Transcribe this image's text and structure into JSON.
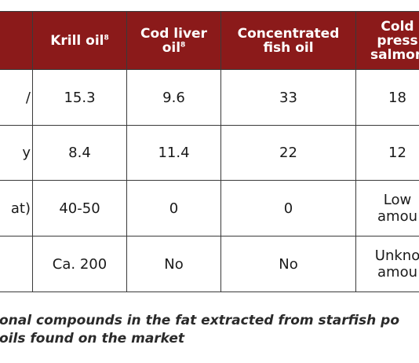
{
  "table": {
    "headers": [
      {
        "text": "",
        "sup": ""
      },
      {
        "text": "Krill oil",
        "sup": "8"
      },
      {
        "text": "Cod liver oil",
        "line1": "Cod liver",
        "line2": "oil",
        "sup": "8"
      },
      {
        "text": "Concentrated fish oil",
        "line1": "Concentrated",
        "line2": "fish oil",
        "sup": ""
      },
      {
        "text": "Cold pressed salmon",
        "line1": "Cold",
        "line2": "press",
        "line3": "salmon",
        "sup": ""
      }
    ],
    "rows": [
      {
        "label": "/",
        "values": [
          "15.3",
          "9.6",
          "33",
          "18"
        ]
      },
      {
        "label": "y",
        "values": [
          "8.4",
          "11.4",
          "22",
          "12"
        ]
      },
      {
        "label": "at)",
        "values": [
          "40-50",
          "0",
          "0",
          "Low amou"
        ],
        "last_line1": "Low",
        "last_line2": "amou"
      },
      {
        "label": "",
        "values": [
          "Ca. 200",
          "No",
          "No",
          "Unkno amou"
        ],
        "last_line1": "Unkno",
        "last_line2": "amou"
      }
    ]
  },
  "caption": {
    "line1": "onal compounds in the fat extracted from starfish po",
    "line2": "oils found on the market"
  },
  "colors": {
    "header_bg": "#8b1a1a",
    "header_text": "#ffffff",
    "border": "#3a3a3a"
  }
}
